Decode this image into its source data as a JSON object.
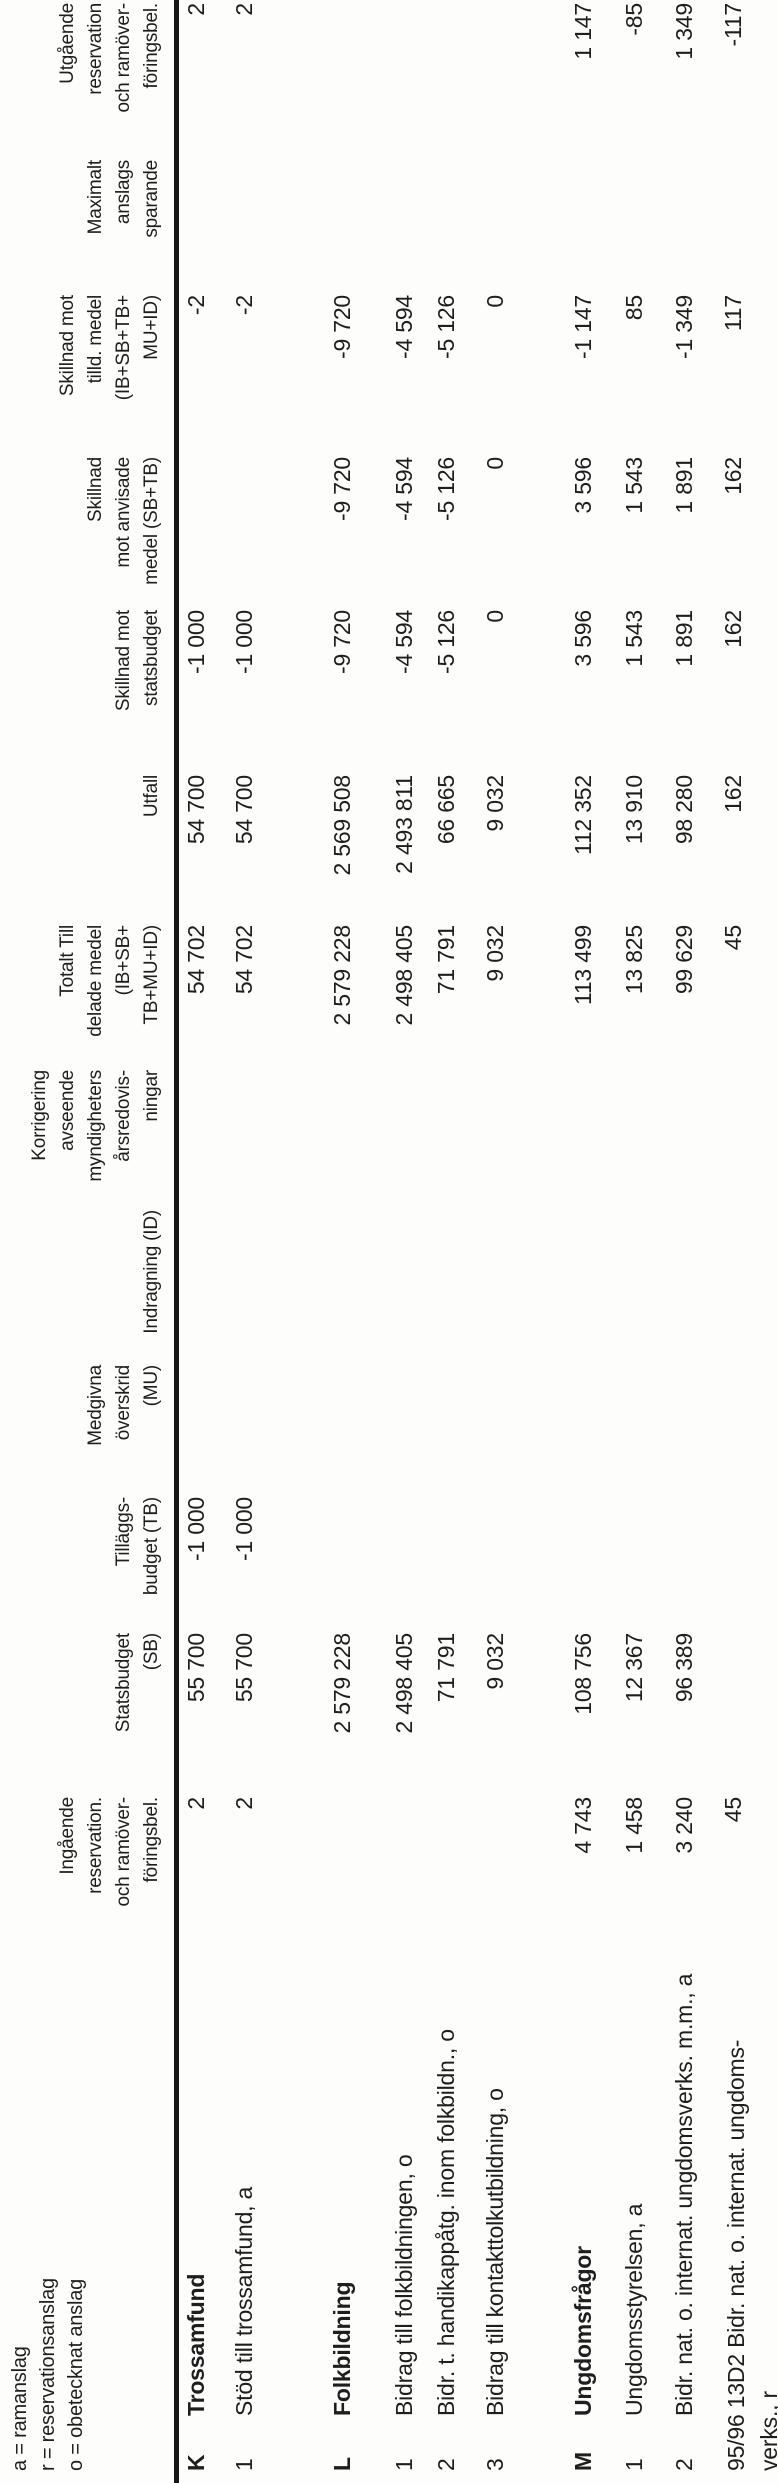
{
  "legend": [
    "a = ramanslag",
    "r = reservationsanslag",
    "o = obetecknat anslag"
  ],
  "columns": {
    "ingaende": [
      "Ingående",
      "reservation.",
      "och ramöver-",
      "föringsbel."
    ],
    "statsbudget": [
      "Statsbudget",
      "(SB)"
    ],
    "tillaggsbudget": [
      "Tilläggs-",
      "budget (TB)"
    ],
    "medgivna": [
      "Medgivna",
      "överskrid",
      "(MU)"
    ],
    "indragning": [
      "Indragning (ID)"
    ],
    "korrigering": [
      "Korrigering",
      "avseende",
      "myndigheters",
      "årsredovis-",
      "ningar"
    ],
    "totalt": [
      "Totalt Till",
      "delade medel",
      "(IB+SB+",
      "TB+MU+ID)"
    ],
    "utfall": [
      "Utfall"
    ],
    "skillnad_statsbudget": [
      "Skillnad mot",
      "statsbudget"
    ],
    "skillnad_anvisade": [
      "Skillnad",
      "mot anvisade",
      "medel (SB+TB)"
    ],
    "skillnad_tilldelade": [
      "Skillnad mot",
      "tilld. medel",
      "(IB+SB+TB+",
      "MU+ID)"
    ],
    "maximalt": [
      "Maximalt",
      "anslags",
      "sparande"
    ],
    "utgaende": [
      "Utgående",
      "reservation",
      "och ramöver-",
      "föringsbel."
    ]
  },
  "rows": [
    {
      "littera": "K",
      "label": "Trossamfund",
      "ingaende": "2",
      "statsbudget": "55 700",
      "tillaggsbudget": "-1 000",
      "medgivna": "",
      "indragning": "",
      "korrigering": "",
      "totalt": "54 702",
      "utfall": "54 700",
      "skillnad_statsbudget": "-1 000",
      "skillnad_anvisade": "",
      "skillnad_tilldelade": "-2",
      "maximalt": "",
      "utgaende": "2"
    },
    {
      "littera": "1",
      "label": "Stöd till trossamfund, a",
      "ingaende": "2",
      "statsbudget": "55 700",
      "tillaggsbudget": "-1 000",
      "medgivna": "",
      "indragning": "",
      "korrigering": "",
      "totalt": "54 702",
      "utfall": "54 700",
      "skillnad_statsbudget": "-1 000",
      "skillnad_anvisade": "",
      "skillnad_tilldelade": "-2",
      "maximalt": "",
      "utgaende": "2"
    },
    {
      "littera": "L",
      "label": "Folkbildning",
      "ingaende": "",
      "statsbudget": "2 579 228",
      "tillaggsbudget": "",
      "medgivna": "",
      "indragning": "",
      "korrigering": "",
      "totalt": "2 579 228",
      "utfall": "2 569 508",
      "skillnad_statsbudget": "-9 720",
      "skillnad_anvisade": "-9 720",
      "skillnad_tilldelade": "-9 720",
      "maximalt": "",
      "utgaende": ""
    },
    {
      "littera": "1",
      "label": "Bidrag till folkbildningen, o",
      "ingaende": "",
      "statsbudget": "2 498 405",
      "tillaggsbudget": "",
      "medgivna": "",
      "indragning": "",
      "korrigering": "",
      "totalt": "2 498 405",
      "utfall": "2 493 811",
      "skillnad_statsbudget": "-4 594",
      "skillnad_anvisade": "-4 594",
      "skillnad_tilldelade": "-4 594",
      "maximalt": "",
      "utgaende": ""
    },
    {
      "littera": "2",
      "label": "Bidr. t. handikappåtg. inom folkbildn., o",
      "ingaende": "",
      "statsbudget": "71 791",
      "tillaggsbudget": "",
      "medgivna": "",
      "indragning": "",
      "korrigering": "",
      "totalt": "71 791",
      "utfall": "66 665",
      "skillnad_statsbudget": "-5 126",
      "skillnad_anvisade": "-5 126",
      "skillnad_tilldelade": "-5 126",
      "maximalt": "",
      "utgaende": ""
    },
    {
      "littera": "3",
      "label": "Bidrag till kontakttolkutbildning, o",
      "ingaende": "",
      "statsbudget": "9 032",
      "tillaggsbudget": "",
      "medgivna": "",
      "indragning": "",
      "korrigering": "",
      "totalt": "9 032",
      "utfall": "9 032",
      "skillnad_statsbudget": "0",
      "skillnad_anvisade": "0",
      "skillnad_tilldelade": "0",
      "maximalt": "",
      "utgaende": ""
    },
    {
      "littera": "M",
      "label": "Ungdomsfrågor",
      "ingaende": "4 743",
      "statsbudget": "108 756",
      "tillaggsbudget": "",
      "medgivna": "",
      "indragning": "",
      "korrigering": "",
      "totalt": "113 499",
      "utfall": "112 352",
      "skillnad_statsbudget": "3 596",
      "skillnad_anvisade": "3 596",
      "skillnad_tilldelade": "-1 147",
      "maximalt": "",
      "utgaende": "1 147"
    },
    {
      "littera": "1",
      "label": "Ungdomsstyrelsen, a",
      "ingaende": "1 458",
      "statsbudget": "12 367",
      "tillaggsbudget": "",
      "medgivna": "",
      "indragning": "",
      "korrigering": "",
      "totalt": "13 825",
      "utfall": "13 910",
      "skillnad_statsbudget": "1 543",
      "skillnad_anvisade": "1 543",
      "skillnad_tilldelade": "85",
      "maximalt": "",
      "utgaende": "-85"
    },
    {
      "littera": "2",
      "label": "Bidr. nat. o. internat. ungdomsverks. m.m., a",
      "ingaende": "3 240",
      "statsbudget": "96 389",
      "tillaggsbudget": "",
      "medgivna": "",
      "indragning": "",
      "korrigering": "",
      "totalt": "99 629",
      "utfall": "98 280",
      "skillnad_statsbudget": "1 891",
      "skillnad_anvisade": "1 891",
      "skillnad_tilldelade": "-1 349",
      "maximalt": "",
      "utgaende": "1 349"
    },
    {
      "littera": "",
      "label": "95/96 13D2 Bidr. nat. o. internat. ungdoms-\nverks., r",
      "ingaende": "45",
      "statsbudget": "",
      "tillaggsbudget": "",
      "medgivna": "",
      "indragning": "",
      "korrigering": "",
      "totalt": "45",
      "utfall": "162",
      "skillnad_statsbudget": "162",
      "skillnad_anvisade": "162",
      "skillnad_tilldelade": "117",
      "maximalt": "",
      "utgaende": "-117"
    }
  ]
}
